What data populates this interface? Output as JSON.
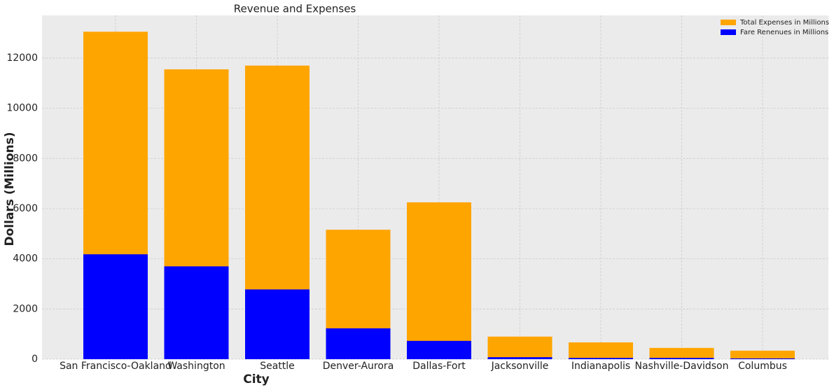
{
  "chart_data": {
    "type": "bar",
    "title": "Revenue and Expenses",
    "x_label": "City",
    "y_label": "Dollars (Millions)",
    "categories": [
      "San Francisco-Oakland",
      "Washington",
      "Seattle",
      "Denver-Aurora",
      "Dallas-Fort",
      "Jacksonville",
      "Indianapolis",
      "Nashville-Davidson",
      "Columbus"
    ],
    "series": [
      {
        "name": "Total Expenses in Millions",
        "color": "#ffa500",
        "values": [
          13050,
          11550,
          11700,
          5160,
          6250,
          900,
          670,
          450,
          340
        ]
      },
      {
        "name": "Fare Renenues in Millions",
        "color": "#0000ff",
        "values": [
          4180,
          3700,
          2780,
          1230,
          730,
          80,
          50,
          50,
          30
        ]
      }
    ],
    "ylim": [
      0,
      13700
    ],
    "yticks": [
      0,
      2000,
      4000,
      6000,
      8000,
      10000,
      12000
    ],
    "grid": true,
    "legend": "upper right"
  }
}
